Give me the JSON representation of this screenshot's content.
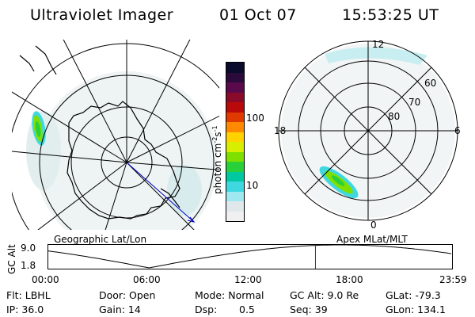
{
  "header": {
    "instrument": "Ultraviolet Imager",
    "date": "01 Oct 07",
    "time": "15:53:25 UT"
  },
  "colorbar": {
    "label_main": "photon cm",
    "label_exp1": "-2",
    "label_s": "s",
    "label_exp2": "-1",
    "ticks": [
      "100",
      "10"
    ],
    "colors": [
      "#0a0a2a",
      "#2a0a3a",
      "#5a0a4a",
      "#8a0a2a",
      "#b80a0a",
      "#e03a00",
      "#ff8a00",
      "#ffd200",
      "#d8ee00",
      "#7fe000",
      "#2ad03a",
      "#00c8a0",
      "#40d8e0",
      "#a0e8f0",
      "#e0e8ec",
      "#f0f0f0"
    ]
  },
  "left_map": {
    "label": "Geographic Lat/Lon"
  },
  "right_map": {
    "label": "Apex MLat/MLT",
    "mlt_labels": {
      "top": "12",
      "bottom": "0",
      "left": "18",
      "right": "6"
    },
    "lat_labels": [
      "60",
      "70",
      "80"
    ]
  },
  "altitude_plot": {
    "axis_label": "GC Alt",
    "y_ticks": [
      "9.0",
      "1.8"
    ],
    "x_ticks": [
      "00:00",
      "06:00",
      "12:00",
      "18:00",
      "23:59"
    ],
    "current_time_fraction": 0.663
  },
  "status": {
    "flt": "Flt: LBHL",
    "ip": "IP: 36.0",
    "door": "Door: Open",
    "gain": "Gain: 14",
    "mode": "Mode: Normal",
    "dsp_label": "Dsp:",
    "dsp_value": "0.5",
    "gc_alt": "GC Alt: 9.0 Re",
    "seq": "Seq: 39",
    "glat": "GLat: -79.3",
    "glon": "GLon: 134.1"
  }
}
